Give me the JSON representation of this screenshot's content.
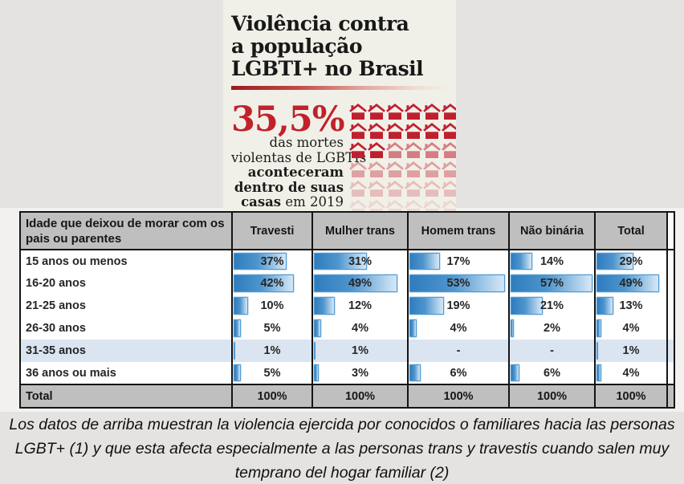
{
  "colors": {
    "accent_red": "#c0222c",
    "bar_blue": "#2f7cbe",
    "header_gray": "#bfbfbf",
    "highlight_row_blue": "#dbe5f1",
    "panel_background": "#f1f0e8"
  },
  "infographic": {
    "title": "Violência contra\na população\nLGBTI+ no Brasil",
    "stat_value": "35,5%",
    "stat_lines": [
      [
        {
          "t": "das mortes",
          "b": false
        }
      ],
      [
        {
          "t": "violentas de LGBTIs",
          "b": false
        }
      ],
      [
        {
          "t": "aconteceram",
          "b": true
        }
      ],
      [
        {
          "t": "dentro de suas",
          "b": true
        }
      ],
      [
        {
          "t": "casas",
          "b": true
        },
        {
          "t": " em 2019",
          "b": false
        }
      ]
    ],
    "houses": {
      "opacities": [
        [
          1,
          1,
          1,
          1,
          1,
          1
        ],
        [
          1,
          1,
          1,
          1,
          1,
          1
        ],
        [
          1,
          1,
          0.55,
          0.55,
          0.55,
          0.55
        ],
        [
          0.38,
          0.38,
          0.38,
          0.38,
          0.38,
          0.38
        ],
        [
          0.24,
          0.24,
          0.24,
          0.24,
          0.24,
          0.24
        ],
        [
          0.12,
          0.12,
          0.12,
          0.12,
          0.12,
          0.12
        ]
      ]
    }
  },
  "table": {
    "header_label": "Idade que deixou de morar com os pais ou parentes",
    "columns": [
      "Travesti",
      "Mulher trans",
      "Homem trans",
      "Não binária",
      "Total"
    ],
    "bar_scale_max": 55,
    "rows": [
      {
        "label": "15 anos ou menos",
        "values": [
          "37%",
          "31%",
          "17%",
          "14%",
          "29%"
        ],
        "highlight": false
      },
      {
        "label": "16-20 anos",
        "values": [
          "42%",
          "49%",
          "53%",
          "57%",
          "49%"
        ],
        "highlight": false
      },
      {
        "label": "21-25 anos",
        "values": [
          "10%",
          "12%",
          "19%",
          "21%",
          "13%"
        ],
        "highlight": false
      },
      {
        "label": "26-30 anos",
        "values": [
          "5%",
          "4%",
          "4%",
          "2%",
          "4%"
        ],
        "highlight": false
      },
      {
        "label": "31-35 anos",
        "values": [
          "1%",
          "1%",
          "-",
          "-",
          "1%"
        ],
        "highlight": true
      },
      {
        "label": "36 anos ou mais",
        "values": [
          "5%",
          "3%",
          "6%",
          "6%",
          "4%"
        ],
        "highlight": false
      }
    ],
    "total_row": {
      "label": "Total",
      "values": [
        "100%",
        "100%",
        "100%",
        "100%",
        "100%"
      ]
    }
  },
  "caption": {
    "text": "Los datos de arriba muestran la violencia ejercida por conocidos o familiares hacia las personas LGBT+ (1) y que esta afecta especialmente a las personas trans y travestis cuando salen muy temprano del hogar familiar (2)"
  },
  "chart_data": {
    "type": "table",
    "title": "Violência contra a população LGBTI+ no Brasil",
    "subtitle": "35,5% das mortes violentas de LGBTIs aconteceram dentro de suas casas em 2019",
    "row_header": "Idade que deixou de morar com os pais ou parentes",
    "columns": [
      "Travesti",
      "Mulher trans",
      "Homem trans",
      "Não binária",
      "Total"
    ],
    "rows": [
      {
        "label": "15 anos ou menos",
        "values": [
          37,
          31,
          17,
          14,
          29
        ]
      },
      {
        "label": "16-20 anos",
        "values": [
          42,
          49,
          53,
          57,
          49
        ]
      },
      {
        "label": "21-25 anos",
        "values": [
          10,
          12,
          19,
          21,
          13
        ]
      },
      {
        "label": "26-30 anos",
        "values": [
          5,
          4,
          4,
          2,
          4
        ]
      },
      {
        "label": "31-35 anos",
        "values": [
          1,
          1,
          null,
          null,
          1
        ]
      },
      {
        "label": "36 anos ou mais",
        "values": [
          5,
          3,
          6,
          6,
          4
        ]
      },
      {
        "label": "Total",
        "values": [
          100,
          100,
          100,
          100,
          100
        ]
      }
    ],
    "unit": "%",
    "bar_style": "in-cell blue gradient data bars, scaled so ~55% fills the cell",
    "headline_stat": {
      "value": 35.5,
      "unit": "%"
    }
  }
}
